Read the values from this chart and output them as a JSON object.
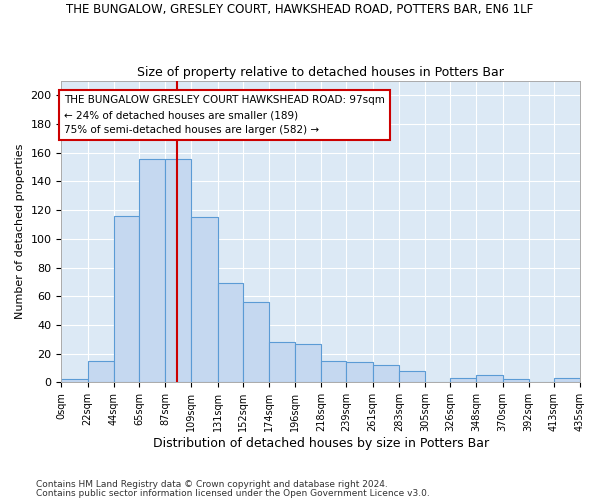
{
  "title1": "THE BUNGALOW, GRESLEY COURT, HAWKSHEAD ROAD, POTTERS BAR, EN6 1LF",
  "title2": "Size of property relative to detached houses in Potters Bar",
  "xlabel": "Distribution of detached houses by size in Potters Bar",
  "ylabel": "Number of detached properties",
  "bin_labels": [
    "0sqm",
    "22sqm",
    "44sqm",
    "65sqm",
    "87sqm",
    "109sqm",
    "131sqm",
    "152sqm",
    "174sqm",
    "196sqm",
    "218sqm",
    "239sqm",
    "261sqm",
    "283sqm",
    "305sqm",
    "326sqm",
    "348sqm",
    "370sqm",
    "392sqm",
    "413sqm",
    "435sqm"
  ],
  "bar_heights": [
    2,
    15,
    116,
    156,
    156,
    115,
    69,
    56,
    28,
    27,
    15,
    14,
    12,
    8,
    0,
    3,
    5,
    2,
    0,
    3
  ],
  "bar_color": "#c5d8f0",
  "bar_edge_color": "#5b9bd5",
  "background_color": "#dce9f5",
  "grid_color": "#ffffff",
  "vline_x": 97,
  "vline_color": "#cc0000",
  "annotation_text": "THE BUNGALOW GRESLEY COURT HAWKSHEAD ROAD: 97sqm\n← 24% of detached houses are smaller (189)\n75% of semi-detached houses are larger (582) →",
  "annotation_box_color": "#ffffff",
  "annotation_box_edge": "#cc0000",
  "ylim": [
    0,
    210
  ],
  "yticks": [
    0,
    20,
    40,
    60,
    80,
    100,
    120,
    140,
    160,
    180,
    200
  ],
  "bin_edges": [
    0,
    22,
    44,
    65,
    87,
    109,
    131,
    152,
    174,
    196,
    218,
    239,
    261,
    283,
    305,
    326,
    348,
    370,
    392,
    413,
    435
  ],
  "footer1": "Contains HM Land Registry data © Crown copyright and database right 2024.",
  "footer2": "Contains public sector information licensed under the Open Government Licence v3.0.",
  "fig_bg": "#ffffff"
}
